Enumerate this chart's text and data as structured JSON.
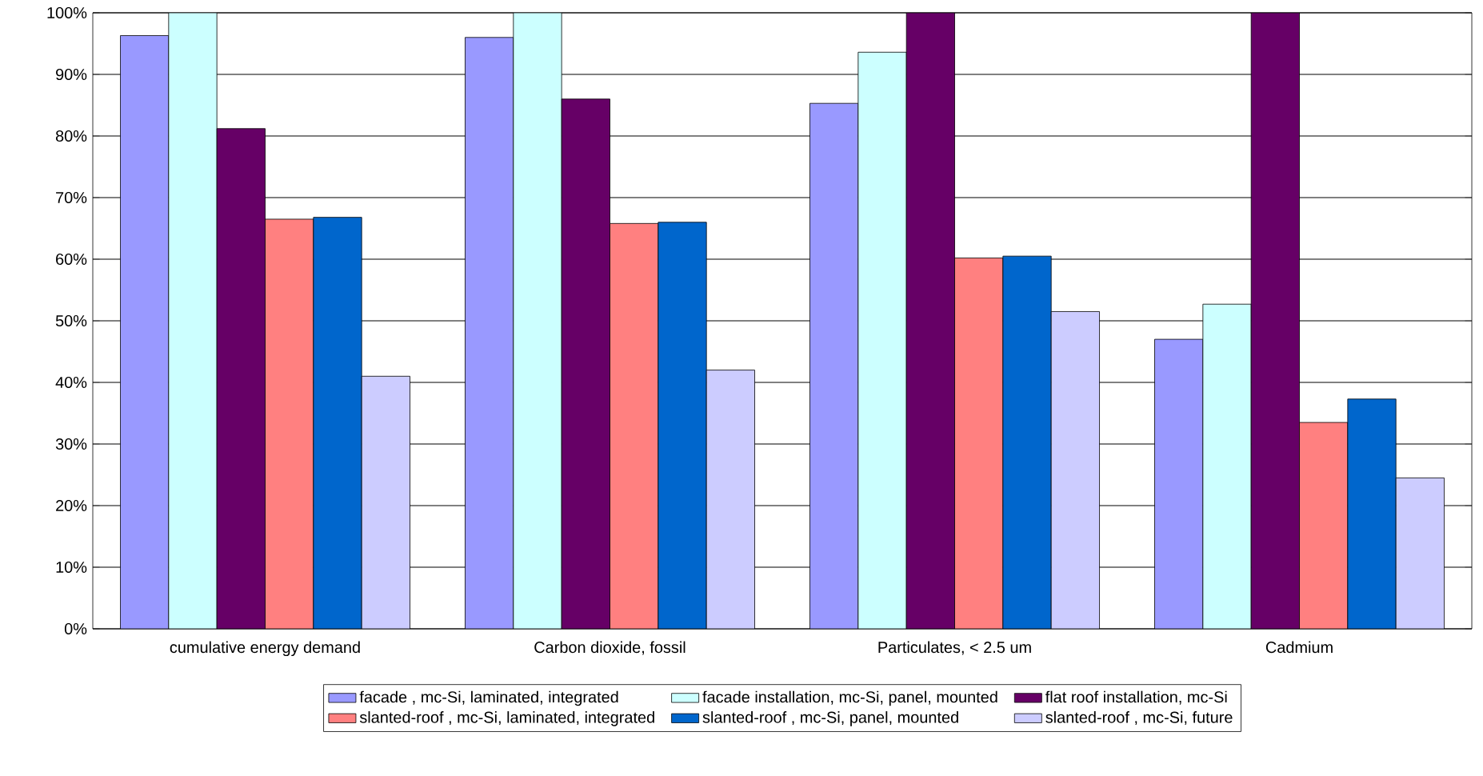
{
  "chart_data": {
    "type": "bar",
    "categories": [
      "cumulative energy demand",
      "Carbon dioxide, fossil",
      "Particulates, < 2.5 um",
      "Cadmium"
    ],
    "series": [
      {
        "name": "facade , mc-Si, laminated, integrated",
        "color": "#9999ff",
        "values": [
          96.3,
          96,
          85.3,
          47
        ]
      },
      {
        "name": "facade installation, mc-Si, panel, mounted",
        "color": "#ccffff",
        "values": [
          100,
          100,
          93.6,
          52.7
        ]
      },
      {
        "name": "flat roof installation, mc-Si",
        "color": "#660066",
        "values": [
          81.2,
          86,
          100,
          100
        ]
      },
      {
        "name": "slanted-roof , mc-Si, laminated, integrated",
        "color": "#ff8080",
        "values": [
          66.5,
          65.8,
          60.2,
          33.5
        ]
      },
      {
        "name": "slanted-roof , mc-Si, panel, mounted",
        "color": "#0066cc",
        "values": [
          66.8,
          66,
          60.5,
          37.3
        ]
      },
      {
        "name": "slanted-roof , mc-Si, future",
        "color": "#ccccff",
        "values": [
          41,
          42,
          51.5,
          24.5
        ]
      }
    ],
    "ylim": [
      0,
      100
    ],
    "yticks": [
      {
        "value": 0,
        "label": "0%"
      },
      {
        "value": 10,
        "label": "10%"
      },
      {
        "value": 20,
        "label": "20%"
      },
      {
        "value": 30,
        "label": "30%"
      },
      {
        "value": 40,
        "label": "40%"
      },
      {
        "value": 50,
        "label": "50%"
      },
      {
        "value": 60,
        "label": "60%"
      },
      {
        "value": 70,
        "label": "70%"
      },
      {
        "value": 80,
        "label": "80%"
      },
      {
        "value": 90,
        "label": "90%"
      },
      {
        "value": 100,
        "label": "100%"
      }
    ],
    "grid": "y",
    "legend": "bottom"
  }
}
